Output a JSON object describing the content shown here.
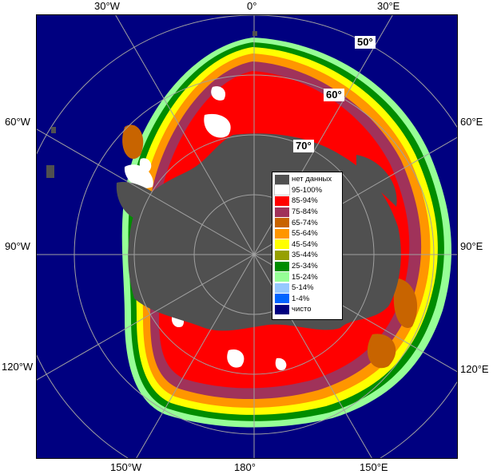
{
  "map": {
    "ocean_color": "#000080",
    "land_color": "#505050",
    "grid_color": "#a0a0a0"
  },
  "lon_labels": {
    "top_30w": "30°W",
    "top_0": "0°",
    "top_30e": "30°E",
    "left_60w": "60°W",
    "left_90w": "90°W",
    "left_120w": "120°W",
    "right_60e": "60°E",
    "right_90e": "90°E",
    "right_120e": "120°E",
    "bottom_150w": "150°W",
    "bottom_180": "180°",
    "bottom_150e": "150°E"
  },
  "lat_labels": {
    "lat50": "50°",
    "lat60": "60°",
    "lat70": "70°"
  },
  "legend": {
    "items": [
      {
        "label": "нет данных",
        "color": "#505050"
      },
      {
        "label": "95-100%",
        "color": "#ffffff"
      },
      {
        "label": "85-94%",
        "color": "#ff0000"
      },
      {
        "label": "75-84%",
        "color": "#a0325a"
      },
      {
        "label": "65-74%",
        "color": "#c86400"
      },
      {
        "label": "55-64%",
        "color": "#ff9600"
      },
      {
        "label": "45-54%",
        "color": "#ffff00"
      },
      {
        "label": "35-44%",
        "color": "#96a000"
      },
      {
        "label": "25-34%",
        "color": "#008c00"
      },
      {
        "label": "15-24%",
        "color": "#96ff96"
      },
      {
        "label": "5-14%",
        "color": "#96c8ff"
      },
      {
        "label": "1-4%",
        "color": "#0064ff"
      },
      {
        "label": "чисто",
        "color": "#000080"
      }
    ]
  }
}
